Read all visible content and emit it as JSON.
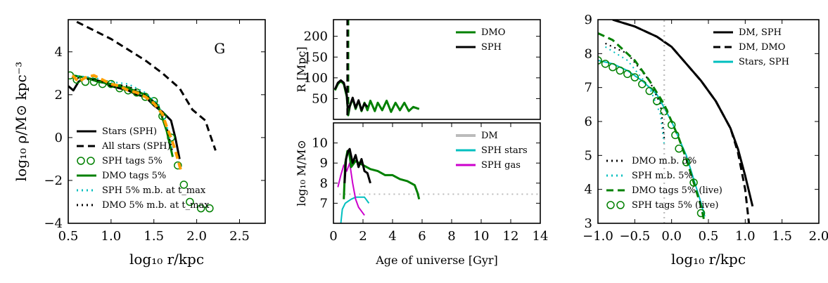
{
  "chart_data": [
    {
      "type": "line",
      "panel": "left",
      "annotation": "G",
      "xlabel": "log₁₀ r/kpc",
      "ylabel": "log₁₀ ρ/M⊙ kpc⁻³",
      "xlim": [
        0.5,
        2.8
      ],
      "ylim": [
        -4,
        5.5
      ],
      "xticks": [
        "0.5",
        "1.0",
        "1.5",
        "2.0",
        "2.5"
      ],
      "yticks": [
        "−4",
        "−2",
        "0",
        "2",
        "4"
      ],
      "legend_position": "lower-left",
      "series": [
        {
          "name": "Stars (SPH)",
          "color": "#000000",
          "style": "solid",
          "x": [
            0.5,
            0.56,
            0.62,
            0.7,
            0.8,
            0.9,
            1.0,
            1.1,
            1.2,
            1.3,
            1.4,
            1.5,
            1.6,
            1.65,
            1.7,
            1.75,
            1.8
          ],
          "y": [
            2.4,
            2.2,
            2.6,
            2.8,
            2.7,
            2.6,
            2.4,
            2.3,
            2.2,
            2.0,
            1.9,
            1.5,
            1.2,
            1.0,
            0.8,
            0.0,
            -1.0
          ]
        },
        {
          "name": "All stars (SPH)",
          "color": "#000000",
          "style": "dashed",
          "x": [
            0.6,
            0.8,
            1.0,
            1.2,
            1.4,
            1.6,
            1.8,
            1.95,
            2.1,
            2.15,
            2.22
          ],
          "y": [
            5.4,
            5.0,
            4.6,
            4.1,
            3.6,
            3.0,
            2.3,
            1.3,
            0.8,
            0.2,
            -0.6
          ]
        },
        {
          "name": "SPH tags 5%",
          "color": "#008000",
          "style": "open-circles",
          "x": [
            0.52,
            0.6,
            0.7,
            0.8,
            0.9,
            1.0,
            1.1,
            1.2,
            1.3,
            1.4,
            1.5,
            1.6,
            1.7,
            1.78,
            1.85,
            1.92,
            2.05,
            2.15
          ],
          "y": [
            2.9,
            2.7,
            2.6,
            2.6,
            2.5,
            2.5,
            2.3,
            2.2,
            2.1,
            1.9,
            1.7,
            1.0,
            0.0,
            -1.3,
            -2.2,
            -3.0,
            -3.3,
            -3.3
          ]
        },
        {
          "name": "DMO tags 5%",
          "color": "#008000",
          "style": "solid",
          "x": [
            0.55,
            0.7,
            0.85,
            1.0,
            1.2,
            1.4,
            1.55,
            1.65,
            1.72
          ],
          "y": [
            2.9,
            2.8,
            2.6,
            2.5,
            2.3,
            2.0,
            1.5,
            0.3,
            -0.9
          ]
        },
        {
          "name": "SPH 5% m.b. at t_max",
          "color": "#00bfbf",
          "style": "dotted",
          "x": [
            0.55,
            0.8,
            1.0,
            1.2,
            1.4,
            1.55,
            1.65,
            1.72
          ],
          "y": [
            2.9,
            2.8,
            2.6,
            2.5,
            2.1,
            1.6,
            0.6,
            -0.6
          ]
        },
        {
          "name": "DMO 5% m.b. at t_max",
          "color": "#000000",
          "style": "dotted",
          "x": [
            0.55,
            0.8,
            1.0,
            1.2,
            1.4,
            1.55,
            1.65,
            1.72
          ],
          "y": [
            2.8,
            2.7,
            2.5,
            2.4,
            2.0,
            1.5,
            0.5,
            -0.7
          ]
        },
        {
          "name": "",
          "color": "#ff9f00",
          "style": "dashed",
          "x": [
            0.55,
            0.62,
            0.7,
            0.8,
            0.9,
            1.0,
            1.1,
            1.2,
            1.3,
            1.4,
            1.5,
            1.6,
            1.65,
            1.7,
            1.75,
            1.82
          ],
          "y": [
            2.9,
            2.6,
            2.8,
            2.9,
            2.7,
            2.5,
            2.4,
            2.2,
            2.1,
            1.9,
            1.6,
            1.1,
            0.5,
            0.0,
            -0.6,
            -1.6
          ]
        }
      ]
    },
    {
      "type": "line",
      "panel": "middle-top",
      "ylabel": "R [Mpc]",
      "xlim": [
        0,
        14
      ],
      "ylim": [
        0,
        240
      ],
      "yticks": [
        "50",
        "100",
        "150",
        "200"
      ],
      "legend_position": "upper-right",
      "series": [
        {
          "name": "DMO",
          "color": "#008000",
          "style": "solid",
          "x": [
            0.1,
            0.3,
            0.5,
            0.7,
            0.9,
            1.0,
            1.1,
            1.3,
            1.5,
            1.7,
            1.9,
            2.1,
            2.3,
            2.5,
            2.8,
            3.0,
            3.3,
            3.6,
            3.9,
            4.2,
            4.5,
            4.8,
            5.1,
            5.4,
            5.8
          ],
          "y": [
            70,
            85,
            92,
            85,
            55,
            10,
            30,
            50,
            25,
            45,
            20,
            40,
            22,
            45,
            20,
            40,
            22,
            45,
            18,
            40,
            22,
            40,
            20,
            30,
            25
          ]
        },
        {
          "name": "SPH",
          "color": "#000000",
          "style": "solid",
          "x": [
            0.1,
            0.3,
            0.5,
            0.7,
            0.9,
            1.0,
            1.1,
            1.3,
            1.5,
            1.7,
            1.9,
            2.1,
            2.3
          ],
          "y": [
            72,
            88,
            94,
            88,
            60,
            12,
            32,
            52,
            28,
            46,
            22,
            38,
            30
          ]
        },
        {
          "name": "",
          "color": "#008000",
          "style": "dashed-vertical",
          "x": [
            1.0,
            1.0
          ],
          "y": [
            10,
            240
          ]
        },
        {
          "name": "",
          "color": "#000000",
          "style": "dashed-vertical",
          "x": [
            0.95,
            0.95
          ],
          "y": [
            10,
            240
          ]
        }
      ]
    },
    {
      "type": "line",
      "panel": "middle-bottom",
      "xlabel": "Age of universe [Gyr]",
      "ylabel": "log₁₀ M/M⊙",
      "xlim": [
        0,
        14
      ],
      "ylim": [
        6,
        11
      ],
      "xticks": [
        "0",
        "2",
        "4",
        "6",
        "8",
        "10",
        "12",
        "14"
      ],
      "yticks": [
        "7",
        "8",
        "9",
        "10"
      ],
      "legend_position": "upper-right",
      "series": [
        {
          "name": "DM",
          "color": "#bbbbbb",
          "style": "dotted",
          "x": [
            0.4,
            14
          ],
          "y": [
            7.45,
            7.45
          ]
        },
        {
          "name": "SPH stars",
          "color": "#00bfbf",
          "style": "solid",
          "x": [
            0.5,
            0.6,
            0.8,
            1.0,
            1.2,
            1.5,
            1.8,
            2.1,
            2.4
          ],
          "y": [
            6.0,
            6.7,
            7.0,
            7.1,
            7.2,
            7.3,
            7.3,
            7.3,
            7.0
          ]
        },
        {
          "name": "SPH gas",
          "color": "#cc00cc",
          "style": "solid",
          "x": [
            0.3,
            0.5,
            0.7,
            0.9,
            1.1,
            1.3,
            1.5,
            1.7,
            1.9,
            2.1
          ],
          "y": [
            7.8,
            8.4,
            8.9,
            8.6,
            9.0,
            8.0,
            7.2,
            6.8,
            6.6,
            6.4
          ]
        },
        {
          "name": "",
          "color": "#008000",
          "style": "solid",
          "x": [
            0.7,
            0.8,
            0.95,
            1.05,
            1.2,
            1.5,
            2.0,
            2.5,
            3.0,
            3.5,
            4.0,
            4.5,
            5.0,
            5.5,
            5.7,
            5.8
          ],
          "y": [
            7.2,
            9.0,
            9.6,
            9.6,
            8.8,
            9.1,
            8.9,
            8.7,
            8.6,
            8.4,
            8.4,
            8.2,
            8.1,
            7.9,
            7.5,
            7.2
          ]
        },
        {
          "name": "",
          "color": "#000000",
          "style": "solid",
          "x": [
            0.75,
            0.85,
            1.0,
            1.1,
            1.3,
            1.5,
            1.7,
            1.9,
            2.1,
            2.3,
            2.5
          ],
          "y": [
            8.0,
            9.2,
            9.6,
            9.7,
            9.0,
            9.4,
            8.8,
            9.2,
            8.6,
            8.5,
            8.0
          ]
        }
      ]
    },
    {
      "type": "line",
      "panel": "right",
      "xlabel": "log₁₀ r/kpc",
      "xlim": [
        -1.0,
        2.0
      ],
      "ylim": [
        3,
        9
      ],
      "xticks": [
        "−1.0",
        "−0.5",
        "0.0",
        "0.5",
        "1.0",
        "1.5",
        "2.0"
      ],
      "yticks": [
        "3",
        "4",
        "5",
        "6",
        "7",
        "8",
        "9"
      ],
      "legend_position": "upper-right",
      "series": [
        {
          "name": "DM, SPH",
          "color": "#000000",
          "style": "solid",
          "x": [
            -0.8,
            -0.5,
            -0.2,
            0.0,
            0.2,
            0.4,
            0.6,
            0.8,
            0.9,
            1.0,
            1.1
          ],
          "y": [
            9.0,
            8.8,
            8.5,
            8.2,
            7.7,
            7.2,
            6.6,
            5.8,
            5.2,
            4.4,
            3.5
          ]
        },
        {
          "name": "DM, DMO",
          "color": "#000000",
          "style": "dashed",
          "x": [
            -0.8,
            -0.5,
            -0.2,
            0.0,
            0.2,
            0.4,
            0.6,
            0.8,
            0.9,
            1.0,
            1.05
          ],
          "y": [
            9.0,
            8.8,
            8.5,
            8.2,
            7.7,
            7.2,
            6.6,
            5.8,
            5.1,
            4.0,
            3.0
          ]
        },
        {
          "name": "Stars, SPH",
          "color": "#00bfbf",
          "style": "solid",
          "x": [
            -1.0,
            -0.8,
            -0.6,
            -0.4,
            -0.2,
            -0.1,
            0.0,
            0.1,
            0.2,
            0.3,
            0.4,
            0.45
          ],
          "y": [
            7.8,
            7.7,
            7.5,
            7.2,
            6.8,
            6.4,
            6.0,
            5.5,
            5.0,
            4.3,
            3.6,
            3.2
          ]
        },
        {
          "name": "DMO m.b. 5%",
          "color": "#000000",
          "style": "dotted",
          "x": [
            -0.9,
            -0.6,
            -0.3,
            -0.15,
            -0.1
          ],
          "y": [
            8.3,
            8.0,
            7.2,
            6.5,
            5.5
          ]
        },
        {
          "name": "SPH m.b. 5%",
          "color": "#00bfbf",
          "style": "dotted",
          "x": [
            -0.9,
            -0.6,
            -0.3,
            -0.15,
            -0.1
          ],
          "y": [
            8.2,
            7.8,
            7.0,
            6.2,
            5.3
          ]
        },
        {
          "name": "DMO tags 5% (live)",
          "color": "#008000",
          "style": "dashed",
          "x": [
            -1.0,
            -0.8,
            -0.5,
            -0.3,
            -0.1,
            0.0,
            0.1,
            0.2,
            0.3,
            0.4,
            0.45
          ],
          "y": [
            8.6,
            8.4,
            7.8,
            7.2,
            6.5,
            6.0,
            5.5,
            4.9,
            4.2,
            3.5,
            3.0
          ]
        },
        {
          "name": "SPH tags 5% (live)",
          "color": "#008000",
          "style": "open-circles",
          "x": [
            -1.0,
            -0.9,
            -0.8,
            -0.7,
            -0.6,
            -0.5,
            -0.4,
            -0.3,
            -0.2,
            -0.1,
            0.0,
            0.05,
            0.1,
            0.2,
            0.3,
            0.4
          ],
          "y": [
            7.8,
            7.7,
            7.6,
            7.5,
            7.4,
            7.3,
            7.1,
            6.9,
            6.6,
            6.3,
            5.9,
            5.6,
            5.2,
            4.8,
            4.2,
            3.3
          ]
        },
        {
          "name": "",
          "color": "#bbbbbb",
          "style": "dotted-vertical",
          "x": [
            -0.1,
            -0.1
          ],
          "y": [
            3,
            9
          ]
        }
      ]
    }
  ]
}
